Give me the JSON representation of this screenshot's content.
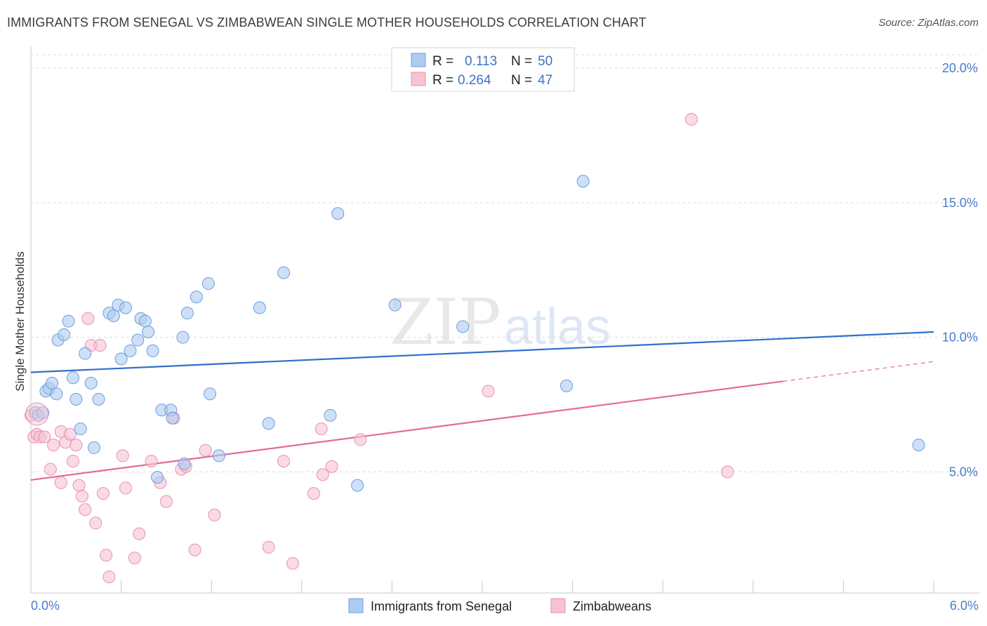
{
  "header": {
    "title": "IMMIGRANTS FROM SENEGAL VS ZIMBABWEAN SINGLE MOTHER HOUSEHOLDS CORRELATION CHART",
    "source": "Source: ZipAtlas.com"
  },
  "watermark": {
    "zip": "ZIP",
    "atlas": "atlas"
  },
  "colors": {
    "blue_fill": "#aecbf0",
    "blue_stroke": "#6e9de0",
    "blue_line": "#2f6fcf",
    "pink_fill": "#f6c3d3",
    "pink_stroke": "#e98fae",
    "pink_line": "#e46a97",
    "grid": "#dcdcdc",
    "tick_text": "#4a7cc9"
  },
  "legend": {
    "rows": [
      {
        "r_label": "R =",
        "r_value": "0.113",
        "n_label": "N =",
        "n_value": "50"
      },
      {
        "r_label": "R =",
        "r_value": "0.264",
        "n_label": "N =",
        "n_value": "47"
      }
    ]
  },
  "chart_data": {
    "type": "scatter",
    "title": "IMMIGRANTS FROM SENEGAL VS ZIMBABWEAN SINGLE MOTHER HOUSEHOLDS CORRELATION CHART",
    "xlabel": "",
    "ylabel": "Single Mother Households",
    "xlim": [
      0,
      6
    ],
    "ylim": [
      0.5,
      20.5
    ],
    "x_tick_labels": [
      "0.0%",
      "6.0%"
    ],
    "y_ticks": [
      5,
      10,
      15,
      20
    ],
    "y_tick_labels": [
      "5.0%",
      "10.0%",
      "15.0%",
      "20.0%"
    ],
    "grid": true,
    "legend_position": "top-center",
    "series": [
      {
        "name": "Immigrants from Senegal",
        "color": "blue",
        "R": 0.113,
        "N": 50,
        "trend": {
          "x0": 0.0,
          "y0": 8.7,
          "x1": 6.0,
          "y1": 10.2,
          "solid_to": 6.0
        },
        "points": [
          [
            0.03,
            7.2
          ],
          [
            0.05,
            7.1
          ],
          [
            0.08,
            7.2
          ],
          [
            0.1,
            8.0
          ],
          [
            0.12,
            8.1
          ],
          [
            0.14,
            8.3
          ],
          [
            0.17,
            7.9
          ],
          [
            0.18,
            9.9
          ],
          [
            0.22,
            10.1
          ],
          [
            0.25,
            10.6
          ],
          [
            0.28,
            8.5
          ],
          [
            0.3,
            7.7
          ],
          [
            0.33,
            6.6
          ],
          [
            0.36,
            9.4
          ],
          [
            0.4,
            8.3
          ],
          [
            0.42,
            5.9
          ],
          [
            0.45,
            7.7
          ],
          [
            0.52,
            10.9
          ],
          [
            0.55,
            10.8
          ],
          [
            0.58,
            11.2
          ],
          [
            0.6,
            9.2
          ],
          [
            0.63,
            11.1
          ],
          [
            0.66,
            9.5
          ],
          [
            0.71,
            9.9
          ],
          [
            0.73,
            10.7
          ],
          [
            0.76,
            10.6
          ],
          [
            0.78,
            10.2
          ],
          [
            0.81,
            9.5
          ],
          [
            0.84,
            4.8
          ],
          [
            0.87,
            7.3
          ],
          [
            0.93,
            7.3
          ],
          [
            0.94,
            7.0
          ],
          [
            1.01,
            10.0
          ],
          [
            1.02,
            5.3
          ],
          [
            1.04,
            10.9
          ],
          [
            1.1,
            11.5
          ],
          [
            1.18,
            12.0
          ],
          [
            1.19,
            7.9
          ],
          [
            1.25,
            5.6
          ],
          [
            1.52,
            11.1
          ],
          [
            1.58,
            6.8
          ],
          [
            1.68,
            12.4
          ],
          [
            1.99,
            7.1
          ],
          [
            2.04,
            14.6
          ],
          [
            2.17,
            4.5
          ],
          [
            2.42,
            11.2
          ],
          [
            2.87,
            10.4
          ],
          [
            3.56,
            8.2
          ],
          [
            3.67,
            15.8
          ],
          [
            5.9,
            6.0
          ]
        ]
      },
      {
        "name": "Zimbabweans",
        "color": "pink",
        "R": 0.264,
        "N": 47,
        "trend": {
          "x0": 0.0,
          "y0": 4.7,
          "x1": 6.0,
          "y1": 9.1,
          "solid_to": 5.0
        },
        "points": [
          [
            0.02,
            6.3
          ],
          [
            0.04,
            6.4
          ],
          [
            0.06,
            6.3
          ],
          [
            0.09,
            6.3
          ],
          [
            0.13,
            5.1
          ],
          [
            0.15,
            6.0
          ],
          [
            0.2,
            4.6
          ],
          [
            0.2,
            6.5
          ],
          [
            0.23,
            6.1
          ],
          [
            0.26,
            6.4
          ],
          [
            0.28,
            5.4
          ],
          [
            0.3,
            6.0
          ],
          [
            0.32,
            4.5
          ],
          [
            0.34,
            4.1
          ],
          [
            0.36,
            3.6
          ],
          [
            0.38,
            10.7
          ],
          [
            0.4,
            9.7
          ],
          [
            0.43,
            3.1
          ],
          [
            0.46,
            9.7
          ],
          [
            0.48,
            4.2
          ],
          [
            0.5,
            1.9
          ],
          [
            0.52,
            1.1
          ],
          [
            0.61,
            5.6
          ],
          [
            0.63,
            4.4
          ],
          [
            0.69,
            1.8
          ],
          [
            0.72,
            2.7
          ],
          [
            0.8,
            5.4
          ],
          [
            0.86,
            4.6
          ],
          [
            0.9,
            3.9
          ],
          [
            0.95,
            7.0
          ],
          [
            1.0,
            5.1
          ],
          [
            1.03,
            5.2
          ],
          [
            1.09,
            2.1
          ],
          [
            1.16,
            5.8
          ],
          [
            1.22,
            3.4
          ],
          [
            1.58,
            2.2
          ],
          [
            1.68,
            5.4
          ],
          [
            1.74,
            1.6
          ],
          [
            1.88,
            4.2
          ],
          [
            1.93,
            6.6
          ],
          [
            1.94,
            4.9
          ],
          [
            2.0,
            5.2
          ],
          [
            2.19,
            6.2
          ],
          [
            3.04,
            8.0
          ],
          [
            4.39,
            18.1
          ],
          [
            4.63,
            5.0
          ],
          [
            0.0,
            7.1
          ]
        ]
      }
    ]
  }
}
